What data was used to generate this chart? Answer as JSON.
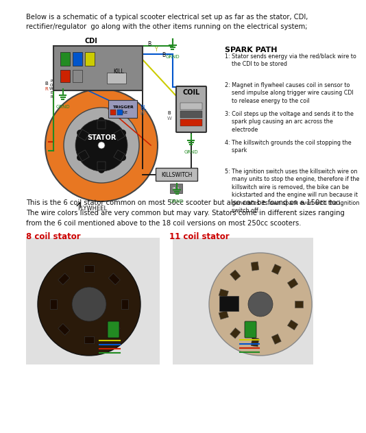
{
  "bg_color": "#ffffff",
  "title_text": "Below is a schematic of a typical scooter electrical set up as far as the stator, CDI,\nrectifier/regulator  go along with the other items running on the electrical system;",
  "body_text1": "This is the 6 coil stator common on most 50cc scooter but also can be found on a 150cc too.\nThe wire colors listed are very common but may vary. Stators come in different sizes ranging\nfrom the 6 coil mentioned above to the 18 coil versions on most 250cc scooters.",
  "label_8coil": "8 coil stator",
  "label_11coil": "11 coil stator",
  "spark_path_title": "SPARK PATH",
  "spark_steps": [
    "1: Stator sends energy via the red/black wire to\n    the CDI to be stored",
    "2: Magnet in flywheel causes coil in sensor to\n    send impulse along trigger wire causing CDI\n    to release energy to the coil",
    "3: Coil steps up the voltage and sends it to the\n    spark plug causing an arc across the\n    electrode",
    "4: The killswitch grounds the coil stopping the\n    spark",
    "5: The ignition switch uses the killswitch wire on\n    many units to stop the engine, therefore if the\n    killswitch wire is removed, the bike can be\n    kickstarted and the engine will run because it\n    generates its own spark even with the ignition\n    switch off."
  ],
  "stator_orange": "#e87722",
  "stator_gray": "#aaaaaa",
  "cdi_gray": "#888888",
  "grnd_green": "#228B22",
  "red_col": "#cc0000",
  "blue_col": "#0055cc",
  "green_col": "#228B22",
  "yellow_col": "#cccc00",
  "black_col": "#111111",
  "white_col": "#cccccc",
  "label_red": "#cc0000",
  "font_title": 7.2,
  "font_body": 7.2,
  "font_spark": 5.8
}
